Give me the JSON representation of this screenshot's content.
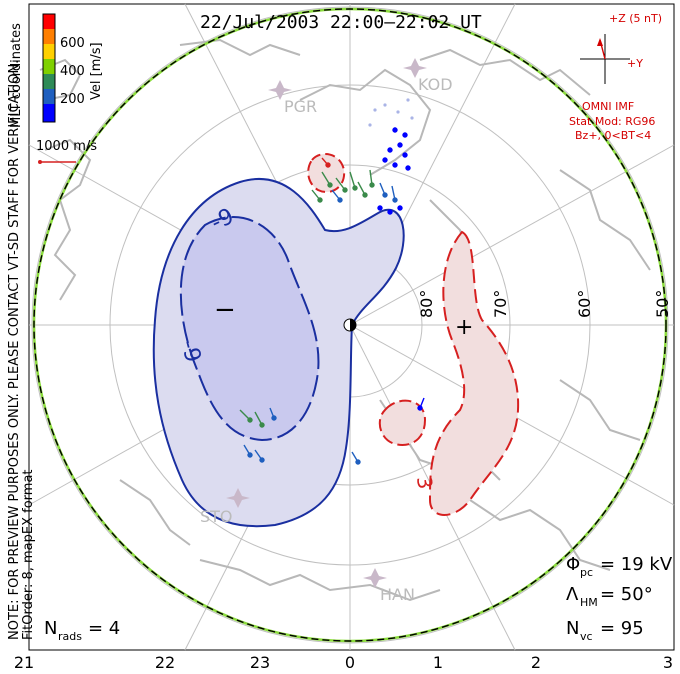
{
  "title": "22/Jul/2003 22:00–22:02 UT",
  "legend": {
    "coordinate_label": "MLT coordinates",
    "velocity_label": "Vel [m/s]",
    "ticks": [
      "600",
      "400",
      "200"
    ],
    "colors": [
      "#ff0000",
      "#ff7f00",
      "#ffd000",
      "#7fd000",
      "#2e8b57",
      "#1f5fbf",
      "#0000ff"
    ],
    "scale_vector_label": "1000 m/s"
  },
  "imf": {
    "plus_z": "+Z (5 nT)",
    "plus_y": "+Y",
    "source": "OMNI IMF",
    "model_line1": "Stat Mod: RG96",
    "model_line2": "Bz+, 0<BT<4"
  },
  "side_note": {
    "line1": "NOTE: FOR PREVIEW PURPOSES ONLY. PLEASE CONTACT VT-SD STAFF FOR VERIFICATION.",
    "line2": "FitOrder: 8, mapEX format"
  },
  "radars": [
    "PGR",
    "KOD",
    "STO",
    "HAN"
  ],
  "latitude_labels": [
    "80°",
    "70°",
    "60°",
    "50°"
  ],
  "mlt_labels": [
    "21",
    "22",
    "23",
    "0",
    "1",
    "2",
    "3"
  ],
  "contours": {
    "negative_labels": [
      "-9",
      "-9"
    ],
    "positive_label": "3",
    "min_marker": "−",
    "max_marker": "+"
  },
  "stats": {
    "phi_pc_symbol": "Φ",
    "phi_pc_sub": "pc",
    "phi_pc_value": "= 19 kV",
    "lambda_symbol": "Λ",
    "lambda_sub": "HM",
    "lambda_value": "= 50°",
    "nvc_symbol": "N",
    "nvc_sub": "vc",
    "nvc_value": "= 95",
    "nrads_symbol": "N",
    "nrads_sub": "rads",
    "nrads_value": "= 4"
  },
  "colors": {
    "negative_fill": "#dcdcf0",
    "negative_inner_fill": "#c9c9ee",
    "negative_line": "#1a2fa0",
    "positive_fill": "#f2dede",
    "positive_line": "#d62020",
    "grid": "#c0c0c0",
    "coast": "#b8b8b8",
    "boundary_green": "#8bdc3c",
    "text_red": "#d40000"
  }
}
